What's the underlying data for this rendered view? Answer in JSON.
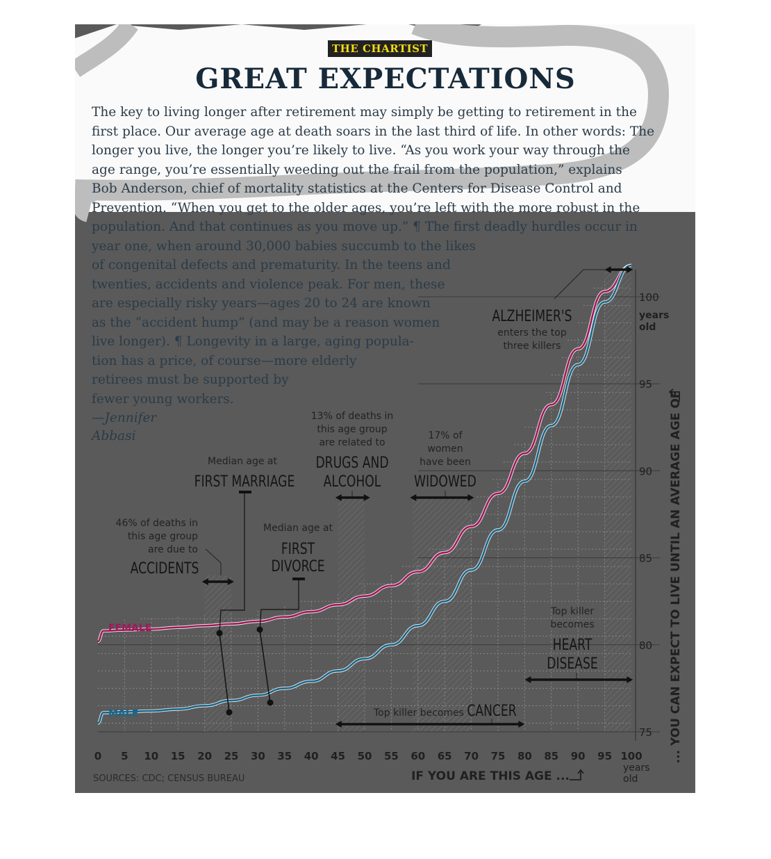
{
  "kicker": "THE CHARTIST",
  "headline": "GREAT EXPECTATIONS",
  "article_lines": [
    "The key to living longer after retirement may simply be getting to retirement in the",
    "first place. Our average age at death soars in the last third of life. In other words: The",
    "longer you live, the longer you’re likely to live. “As you work your way through the",
    "age range, you’re essentially weeding out the frail from the population,” explains",
    "Bob Anderson, chief of mortality statistics at the Centers for Disease Control and",
    "Prevention. “When you get to the older ages, you’re left with the more robust in the",
    "population. And that continues as you move up.” ¶ The first deadly hurdles occur in",
    "year one, when around 30,000 babies succumb to the likes",
    "of congenital defects and prematurity. In the teens and",
    "twenties, accidents and violence peak. For men, these",
    "are especially risky years—ages 20 to 24 are known",
    "as the “accident hump” (and may be a reason women",
    "live longer). ¶ Longevity in a large, aging popula-",
    "tion has a price, of course—more elderly",
    "retirees must be supported by",
    "fewer young workers."
  ],
  "byline_1": "—Jennifer",
  "byline_2": "Abbasi",
  "chart_data": {
    "type": "line",
    "xlabel": "IF YOU ARE THIS AGE ...",
    "ylabel": "... YOU CAN EXPECT TO LIVE UNTIL AN AVERAGE AGE OF",
    "x_ticks": [
      0,
      5,
      10,
      15,
      20,
      25,
      30,
      35,
      40,
      45,
      50,
      55,
      60,
      65,
      70,
      75,
      80,
      85,
      90,
      95,
      100
    ],
    "x_tick_labels": [
      "0",
      "5",
      "10",
      "15",
      "20",
      "25",
      "30",
      "35",
      "40",
      "45",
      "50",
      "55",
      "60",
      "65",
      "70",
      "75",
      "80",
      "85",
      "90",
      "95",
      "100"
    ],
    "x_end_unit": "years old",
    "y_ticks": [
      75,
      80,
      85,
      90,
      95,
      100
    ],
    "y_tick_labels": [
      "75",
      "80",
      "85",
      "90",
      "95",
      "100"
    ],
    "y_end_unit": "years old",
    "xlim": [
      0,
      100
    ],
    "ylim": [
      74.5,
      101.5
    ],
    "source": "SOURCES: CDC; CENSUS BUREAU",
    "series": [
      {
        "name": "FEMALE",
        "color": "#a0195a",
        "x": [
          0,
          1,
          5,
          10,
          15,
          20,
          25,
          30,
          35,
          40,
          45,
          50,
          55,
          60,
          65,
          70,
          75,
          80,
          85,
          90,
          95,
          100
        ],
        "y": [
          80.2,
          80.8,
          80.85,
          80.9,
          81.0,
          81.1,
          81.2,
          81.35,
          81.6,
          81.9,
          82.3,
          82.8,
          83.4,
          84.2,
          85.3,
          86.8,
          88.7,
          91.0,
          93.8,
          97.0,
          100.3,
          102.6
        ]
      },
      {
        "name": "MALE",
        "color": "#1a6688",
        "x": [
          0,
          1,
          5,
          10,
          15,
          20,
          25,
          30,
          35,
          40,
          45,
          50,
          55,
          60,
          65,
          70,
          75,
          80,
          85,
          90,
          95,
          100
        ],
        "y": [
          75.5,
          76.1,
          76.15,
          76.2,
          76.3,
          76.5,
          76.8,
          77.1,
          77.5,
          77.9,
          78.5,
          79.2,
          80.0,
          81.1,
          82.5,
          84.3,
          86.6,
          89.4,
          92.6,
          96.1,
          99.7,
          102.3
        ]
      }
    ],
    "annotations": [
      {
        "id": "accidents",
        "range": [
          20,
          25
        ],
        "pre": [
          "46% of deaths in",
          "this age group",
          "are due to"
        ],
        "big": [
          "ACCIDENTS"
        ]
      },
      {
        "id": "first-marriage",
        "age": 27,
        "pre": [
          "Median age at"
        ],
        "big": [
          "FIRST MARRIAGE"
        ]
      },
      {
        "id": "first-divorce",
        "age": 31,
        "pre": [
          "Median age at"
        ],
        "big": [
          "FIRST",
          "DIVORCE"
        ]
      },
      {
        "id": "drugs-alcohol",
        "range": [
          45,
          50
        ],
        "pre": [
          "13% of deaths in",
          "this age group",
          "are related to"
        ],
        "big": [
          "DRUGS AND",
          "ALCOHOL"
        ]
      },
      {
        "id": "widowed",
        "range": [
          59,
          70
        ],
        "pre": [
          "17% of",
          "women",
          "have been"
        ],
        "big": [
          "WIDOWED"
        ]
      },
      {
        "id": "alzheimers",
        "range": [
          95,
          100
        ],
        "big": [
          "ALZHEIMER'S"
        ],
        "post": [
          "enters the top",
          "three killers"
        ]
      },
      {
        "id": "heart-disease",
        "range": [
          80,
          100
        ],
        "pre": [
          "Top killer",
          "becomes"
        ],
        "big": [
          "HEART",
          "DISEASE"
        ]
      },
      {
        "id": "cancer",
        "range": [
          45,
          80
        ],
        "pre": [
          "Top killer becomes"
        ],
        "big": [
          "CANCER"
        ]
      }
    ]
  }
}
